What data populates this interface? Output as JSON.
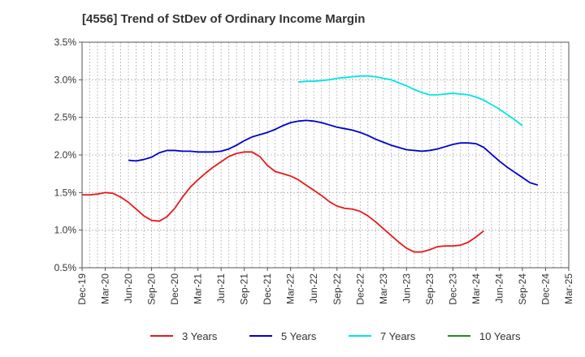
{
  "chart_data": {
    "type": "line",
    "title": "[4556]  Trend of StDev of Ordinary Income Margin",
    "xlabel": "",
    "ylabel": "",
    "x_tick_labels": [
      "Dec-19",
      "Mar-20",
      "Jun-20",
      "Sep-20",
      "Dec-20",
      "Mar-21",
      "Jun-21",
      "Sep-21",
      "Dec-21",
      "Mar-22",
      "Jun-22",
      "Sep-22",
      "Dec-22",
      "Mar-23",
      "Jun-23",
      "Sep-23",
      "Dec-23",
      "Mar-24",
      "Jun-24",
      "Sep-24",
      "Dec-24",
      "Mar-25"
    ],
    "y_tick_labels": [
      "0.5%",
      "1.0%",
      "1.5%",
      "2.0%",
      "2.5%",
      "3.0%",
      "3.5%"
    ],
    "y_ticks": [
      0.5,
      1.0,
      1.5,
      2.0,
      2.5,
      3.0,
      3.5
    ],
    "ylim": [
      0.5,
      3.5
    ],
    "grid": true,
    "legend_position": "bottom",
    "series": [
      {
        "name": "3 Years",
        "color": "#e41a1c",
        "points": [
          [
            0,
            1.47
          ],
          [
            1,
            1.47
          ],
          [
            2,
            1.48
          ],
          [
            3,
            1.5
          ],
          [
            4,
            1.49
          ],
          [
            5,
            1.44
          ],
          [
            6,
            1.37
          ],
          [
            7,
            1.28
          ],
          [
            8,
            1.19
          ],
          [
            9,
            1.13
          ],
          [
            10,
            1.12
          ],
          [
            11,
            1.18
          ],
          [
            12,
            1.29
          ],
          [
            13,
            1.44
          ],
          [
            14,
            1.57
          ],
          [
            15,
            1.67
          ],
          [
            16,
            1.76
          ],
          [
            17,
            1.84
          ],
          [
            18,
            1.91
          ],
          [
            19,
            1.98
          ],
          [
            20,
            2.02
          ],
          [
            21,
            2.04
          ],
          [
            22,
            2.04
          ],
          [
            23,
            1.98
          ],
          [
            24,
            1.86
          ],
          [
            25,
            1.78
          ],
          [
            26,
            1.75
          ],
          [
            27,
            1.72
          ],
          [
            28,
            1.67
          ],
          [
            29,
            1.6
          ],
          [
            30,
            1.53
          ],
          [
            31,
            1.46
          ],
          [
            32,
            1.38
          ],
          [
            33,
            1.32
          ],
          [
            34,
            1.29
          ],
          [
            35,
            1.28
          ],
          [
            36,
            1.25
          ],
          [
            37,
            1.19
          ],
          [
            38,
            1.11
          ],
          [
            39,
            1.02
          ],
          [
            40,
            0.93
          ],
          [
            41,
            0.84
          ],
          [
            42,
            0.76
          ],
          [
            43,
            0.71
          ],
          [
            44,
            0.71
          ],
          [
            45,
            0.74
          ],
          [
            46,
            0.78
          ],
          [
            47,
            0.79
          ],
          [
            48,
            0.79
          ],
          [
            49,
            0.8
          ],
          [
            50,
            0.84
          ],
          [
            51,
            0.91
          ],
          [
            52,
            0.99
          ]
        ]
      },
      {
        "name": "5 Years",
        "color": "#0000cc",
        "points": [
          [
            6,
            1.93
          ],
          [
            7,
            1.92
          ],
          [
            8,
            1.94
          ],
          [
            9,
            1.97
          ],
          [
            10,
            2.03
          ],
          [
            11,
            2.06
          ],
          [
            12,
            2.06
          ],
          [
            13,
            2.05
          ],
          [
            14,
            2.05
          ],
          [
            15,
            2.04
          ],
          [
            16,
            2.04
          ],
          [
            17,
            2.04
          ],
          [
            18,
            2.05
          ],
          [
            19,
            2.08
          ],
          [
            20,
            2.13
          ],
          [
            21,
            2.19
          ],
          [
            22,
            2.24
          ],
          [
            23,
            2.27
          ],
          [
            24,
            2.3
          ],
          [
            25,
            2.34
          ],
          [
            26,
            2.39
          ],
          [
            27,
            2.43
          ],
          [
            28,
            2.45
          ],
          [
            29,
            2.46
          ],
          [
            30,
            2.45
          ],
          [
            31,
            2.43
          ],
          [
            32,
            2.4
          ],
          [
            33,
            2.37
          ],
          [
            34,
            2.35
          ],
          [
            35,
            2.33
          ],
          [
            36,
            2.3
          ],
          [
            37,
            2.26
          ],
          [
            38,
            2.21
          ],
          [
            39,
            2.17
          ],
          [
            40,
            2.13
          ],
          [
            41,
            2.1
          ],
          [
            42,
            2.07
          ],
          [
            43,
            2.06
          ],
          [
            44,
            2.05
          ],
          [
            45,
            2.06
          ],
          [
            46,
            2.08
          ],
          [
            47,
            2.11
          ],
          [
            48,
            2.14
          ],
          [
            49,
            2.16
          ],
          [
            50,
            2.16
          ],
          [
            51,
            2.15
          ],
          [
            52,
            2.1
          ],
          [
            53,
            2.01
          ],
          [
            54,
            1.92
          ],
          [
            55,
            1.84
          ],
          [
            56,
            1.77
          ],
          [
            57,
            1.7
          ],
          [
            58,
            1.63
          ],
          [
            59,
            1.6
          ]
        ]
      },
      {
        "name": "7 Years",
        "color": "#00e5e5",
        "points": [
          [
            28,
            2.97
          ],
          [
            29,
            2.98
          ],
          [
            30,
            2.98
          ],
          [
            31,
            2.99
          ],
          [
            32,
            3.0
          ],
          [
            33,
            3.02
          ],
          [
            34,
            3.03
          ],
          [
            35,
            3.04
          ],
          [
            36,
            3.05
          ],
          [
            37,
            3.05
          ],
          [
            38,
            3.04
          ],
          [
            39,
            3.02
          ],
          [
            40,
            3.0
          ],
          [
            41,
            2.96
          ],
          [
            42,
            2.92
          ],
          [
            43,
            2.87
          ],
          [
            44,
            2.83
          ],
          [
            45,
            2.8
          ],
          [
            46,
            2.8
          ],
          [
            47,
            2.81
          ],
          [
            48,
            2.82
          ],
          [
            49,
            2.81
          ],
          [
            50,
            2.8
          ],
          [
            51,
            2.77
          ],
          [
            52,
            2.73
          ],
          [
            53,
            2.67
          ],
          [
            54,
            2.61
          ],
          [
            55,
            2.54
          ],
          [
            56,
            2.47
          ],
          [
            57,
            2.39
          ]
        ]
      },
      {
        "name": "10 Years",
        "color": "#228b22",
        "points": []
      }
    ]
  }
}
